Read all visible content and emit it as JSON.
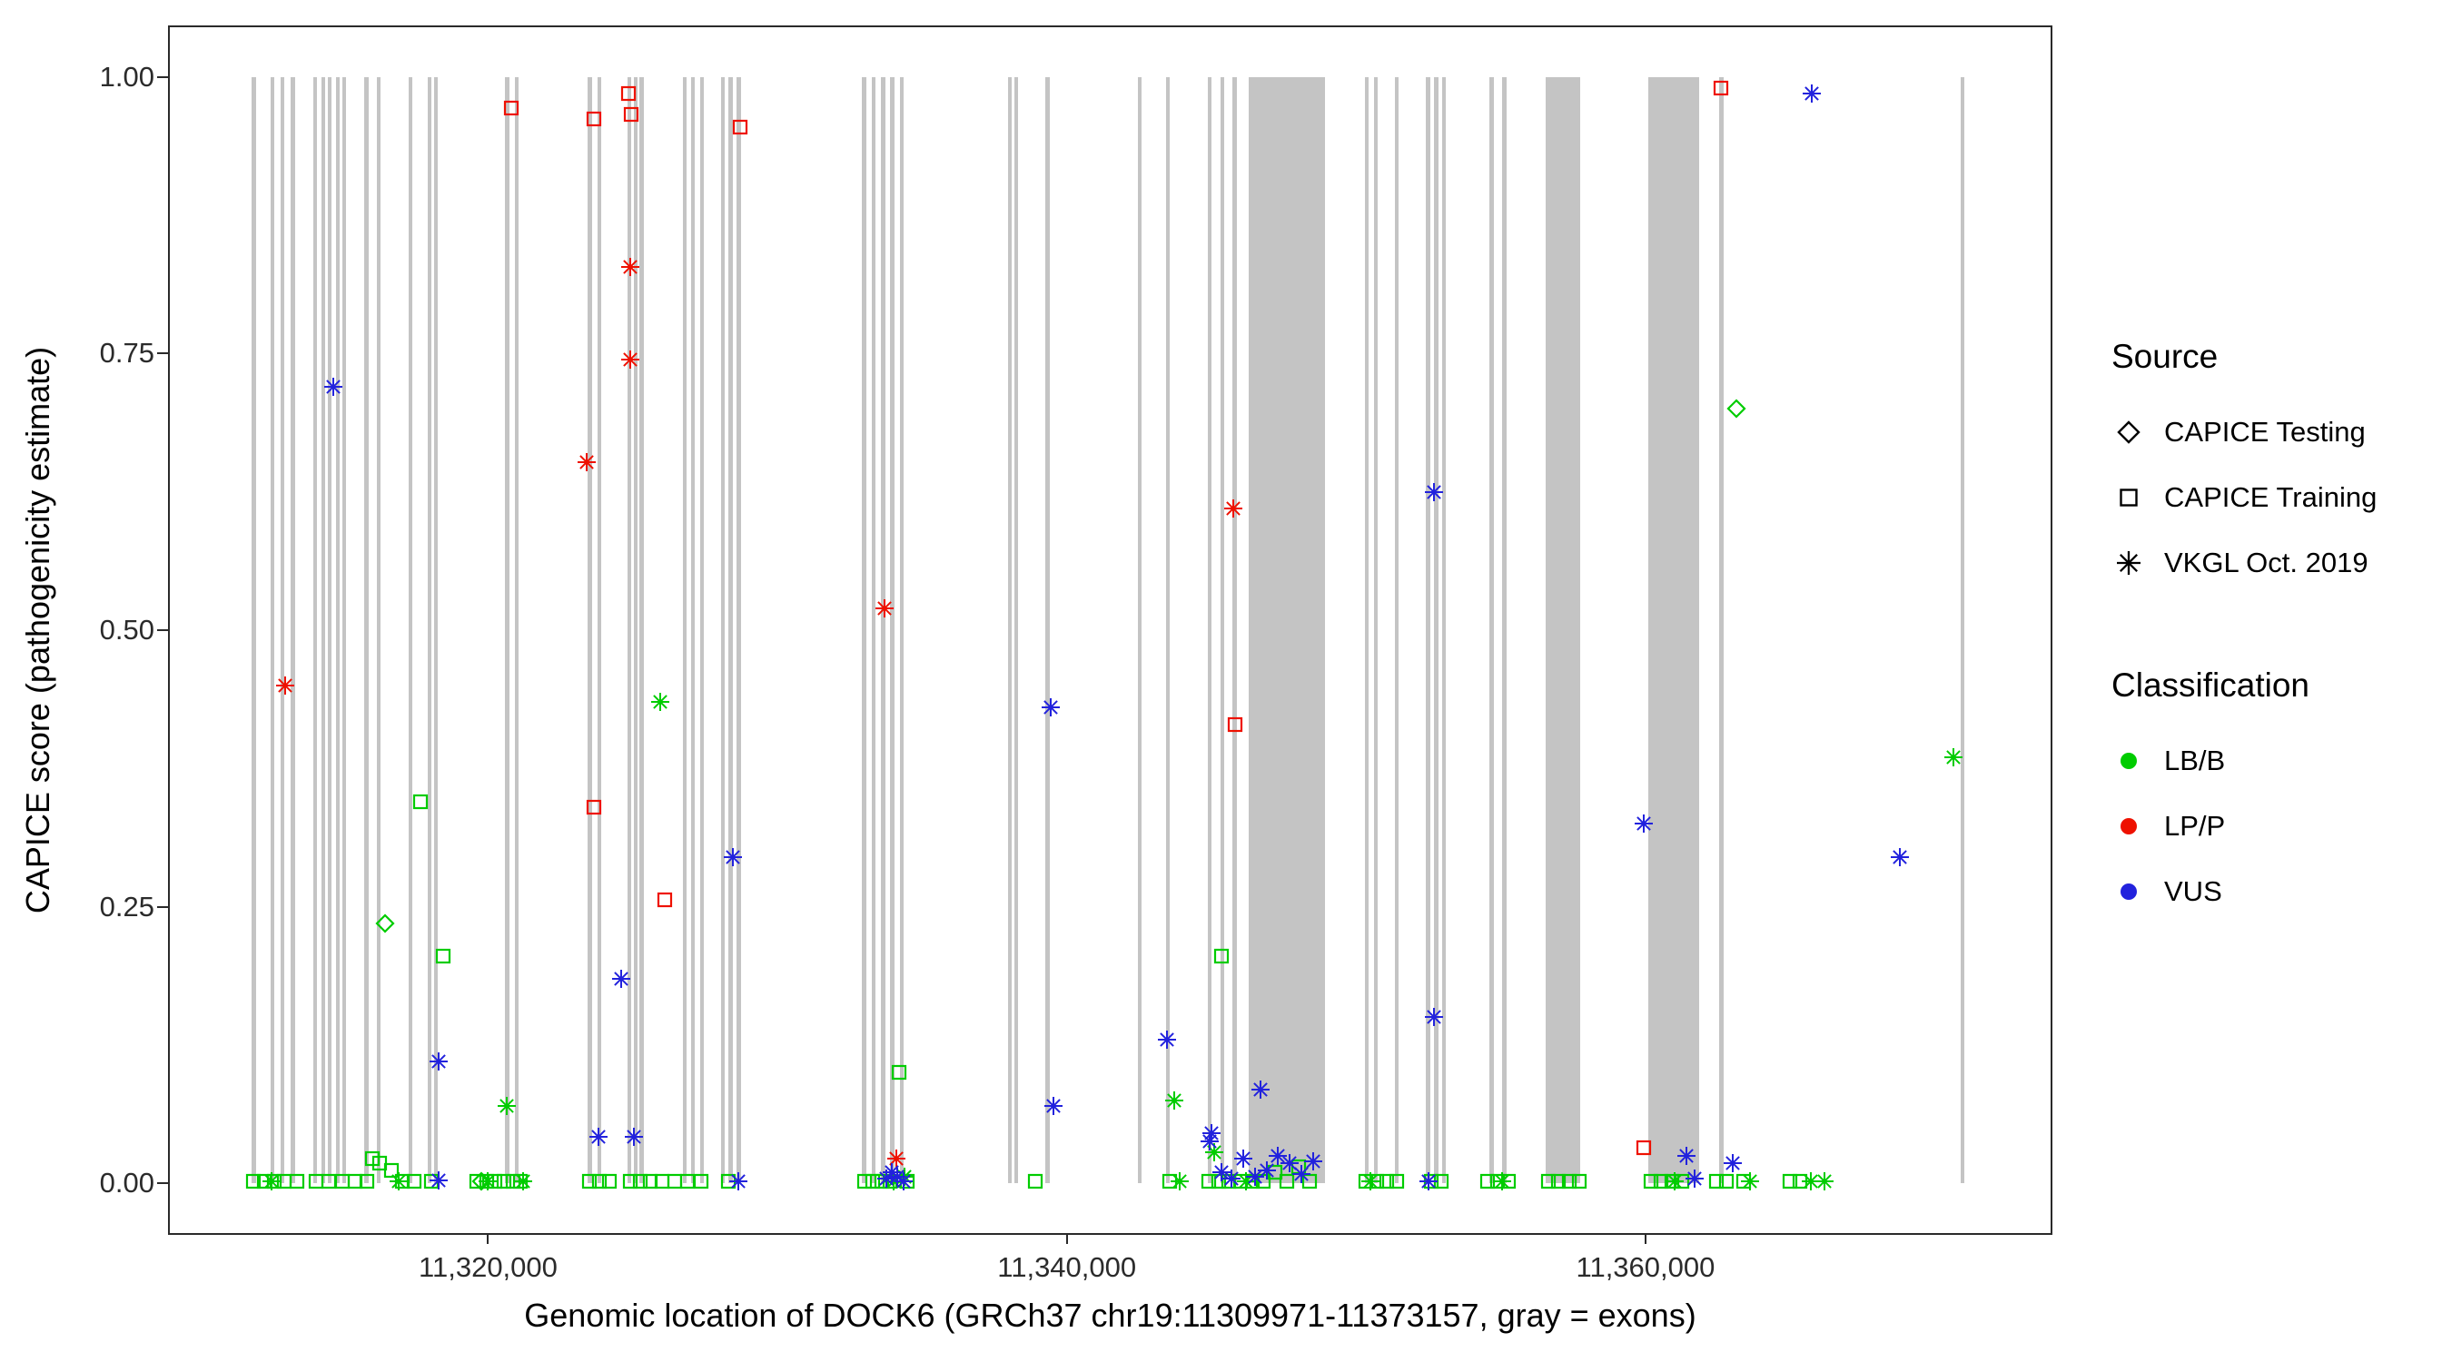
{
  "legend": {
    "source": {
      "title": "Source",
      "items": [
        {
          "label": "CAPICE Testing",
          "shape": "diamond"
        },
        {
          "label": "CAPICE Training",
          "shape": "square"
        },
        {
          "label": "VKGL Oct. 2019",
          "shape": "asterisk"
        }
      ]
    },
    "classification": {
      "title": "Classification",
      "items": [
        {
          "label": "LB/B",
          "color_key": "LB/B"
        },
        {
          "label": "LP/P",
          "color_key": "LP/P"
        },
        {
          "label": "VUS",
          "color_key": "VUS"
        }
      ]
    }
  },
  "chart_data": {
    "type": "scatter",
    "title": "",
    "xlabel": "Genomic location of DOCK6 (GRCh37 chr19:11309971-11373157, gray = exons)",
    "ylabel": "CAPICE score (pathogenicity estimate)",
    "x_domain": [
      11309000,
      11374000
    ],
    "y_domain": [
      -0.045,
      1.045
    ],
    "x_ticks": [
      {
        "value": 11320000,
        "label": "11,320,000"
      },
      {
        "value": 11340000,
        "label": "11,340,000"
      },
      {
        "value": 11360000,
        "label": "11,360,000"
      }
    ],
    "y_ticks": [
      {
        "value": 1.0,
        "label": "1.00"
      },
      {
        "value": 0.75,
        "label": "0.75"
      },
      {
        "value": 0.5,
        "label": "0.50"
      },
      {
        "value": 0.25,
        "label": "0.25"
      },
      {
        "value": 0.0,
        "label": "0.00"
      }
    ],
    "colors": {
      "LB/B": "#00cc00",
      "LP/P": "#ee1100",
      "VUS": "#2222dd",
      "exon": "#c4c4c4",
      "axis": "#2a2a2a"
    },
    "source_codes": {
      "d": "CAPICE Testing",
      "s": "CAPICE Training",
      "a": "VKGL Oct. 2019"
    },
    "class_codes": {
      "g": "LB/B",
      "r": "LP/P",
      "b": "VUS"
    },
    "exons": [
      [
        11311840,
        11311990
      ],
      [
        11312490,
        11312620
      ],
      [
        11312820,
        11312950
      ],
      [
        11313190,
        11313330
      ],
      [
        11313960,
        11314100
      ],
      [
        11314240,
        11314370
      ],
      [
        11314460,
        11314590
      ],
      [
        11314740,
        11314870
      ],
      [
        11314950,
        11315080
      ],
      [
        11315710,
        11315860
      ],
      [
        11316150,
        11316290
      ],
      [
        11317240,
        11317380
      ],
      [
        11317900,
        11318030
      ],
      [
        11318120,
        11318260
      ],
      [
        11320590,
        11320730
      ],
      [
        11320920,
        11321060
      ],
      [
        11323440,
        11323580
      ],
      [
        11323770,
        11323910
      ],
      [
        11324810,
        11324950
      ],
      [
        11325030,
        11325170
      ],
      [
        11325240,
        11325380
      ],
      [
        11326720,
        11326860
      ],
      [
        11327000,
        11327140
      ],
      [
        11327330,
        11327470
      ],
      [
        11328040,
        11328180
      ],
      [
        11328310,
        11328450
      ],
      [
        11328590,
        11328730
      ],
      [
        11332920,
        11333060
      ],
      [
        11333250,
        11333390
      ],
      [
        11333580,
        11333720
      ],
      [
        11333900,
        11334040
      ],
      [
        11334230,
        11334370
      ],
      [
        11337960,
        11338100
      ],
      [
        11338180,
        11338320
      ],
      [
        11339270,
        11339410
      ],
      [
        11342450,
        11342590
      ],
      [
        11343430,
        11343570
      ],
      [
        11344860,
        11345000
      ],
      [
        11345300,
        11345440
      ],
      [
        11345730,
        11345870
      ],
      [
        11346300,
        11348930
      ],
      [
        11350290,
        11350430
      ],
      [
        11350610,
        11350750
      ],
      [
        11351330,
        11351470
      ],
      [
        11352420,
        11352560
      ],
      [
        11352700,
        11352840
      ],
      [
        11352970,
        11353110
      ],
      [
        11354610,
        11354750
      ],
      [
        11355050,
        11355190
      ],
      [
        11356550,
        11357750
      ],
      [
        11360100,
        11361850
      ],
      [
        11362550,
        11362690
      ],
      [
        11370880,
        11371020
      ]
    ],
    "points": [
      [
        11313000,
        0.45,
        "a",
        "r"
      ],
      [
        11314650,
        0.72,
        "a",
        "b"
      ],
      [
        11316450,
        0.235,
        "d",
        "g"
      ],
      [
        11317650,
        0.345,
        "s",
        "g"
      ],
      [
        11318450,
        0.205,
        "s",
        "g"
      ],
      [
        11318300,
        0.11,
        "a",
        "b"
      ],
      [
        11320650,
        0.07,
        "a",
        "g"
      ],
      [
        11320800,
        0.972,
        "s",
        "r"
      ],
      [
        11323650,
        0.962,
        "s",
        "r"
      ],
      [
        11323400,
        0.652,
        "a",
        "r"
      ],
      [
        11323650,
        0.34,
        "s",
        "r"
      ],
      [
        11324850,
        0.985,
        "s",
        "r"
      ],
      [
        11324950,
        0.966,
        "s",
        "r"
      ],
      [
        11324900,
        0.828,
        "a",
        "r"
      ],
      [
        11324900,
        0.745,
        "a",
        "r"
      ],
      [
        11325950,
        0.435,
        "a",
        "g"
      ],
      [
        11326100,
        0.256,
        "s",
        "r"
      ],
      [
        11324600,
        0.185,
        "a",
        "b"
      ],
      [
        11323800,
        0.042,
        "a",
        "b"
      ],
      [
        11325050,
        0.042,
        "a",
        "b"
      ],
      [
        11328700,
        0.955,
        "s",
        "r"
      ],
      [
        11328450,
        0.295,
        "a",
        "b"
      ],
      [
        11333700,
        0.52,
        "a",
        "r"
      ],
      [
        11334200,
        0.1,
        "s",
        "g"
      ],
      [
        11334100,
        0.022,
        "a",
        "r"
      ],
      [
        11339450,
        0.43,
        "a",
        "b"
      ],
      [
        11339550,
        0.07,
        "a",
        "b"
      ],
      [
        11343450,
        0.13,
        "a",
        "b"
      ],
      [
        11343700,
        0.075,
        "a",
        "g"
      ],
      [
        11345000,
        0.045,
        "a",
        "b"
      ],
      [
        11345750,
        0.61,
        "a",
        "r"
      ],
      [
        11345800,
        0.415,
        "s",
        "r"
      ],
      [
        11345350,
        0.205,
        "s",
        "g"
      ],
      [
        11346700,
        0.085,
        "a",
        "b"
      ],
      [
        11352700,
        0.625,
        "a",
        "b"
      ],
      [
        11352700,
        0.15,
        "a",
        "b"
      ],
      [
        11359950,
        0.325,
        "a",
        "b"
      ],
      [
        11359950,
        0.032,
        "s",
        "r"
      ],
      [
        11362600,
        0.99,
        "s",
        "r"
      ],
      [
        11363150,
        0.7,
        "d",
        "g"
      ],
      [
        11365750,
        0.985,
        "a",
        "b"
      ],
      [
        11368800,
        0.295,
        "a",
        "b"
      ],
      [
        11370650,
        0.385,
        "a",
        "g"
      ],
      [
        11311900,
        0.002,
        "s",
        "g"
      ],
      [
        11312250,
        0.002,
        "s",
        "g"
      ],
      [
        11312600,
        0.002,
        "s",
        "g"
      ],
      [
        11312950,
        0.002,
        "s",
        "g"
      ],
      [
        11313400,
        0.002,
        "s",
        "g"
      ],
      [
        11314050,
        0.002,
        "s",
        "g"
      ],
      [
        11314500,
        0.002,
        "s",
        "g"
      ],
      [
        11314950,
        0.002,
        "s",
        "g"
      ],
      [
        11315400,
        0.002,
        "s",
        "g"
      ],
      [
        11315800,
        0.002,
        "s",
        "g"
      ],
      [
        11316000,
        0.022,
        "s",
        "g"
      ],
      [
        11316250,
        0.018,
        "s",
        "g"
      ],
      [
        11316650,
        0.012,
        "s",
        "g"
      ],
      [
        11317050,
        0.002,
        "s",
        "g"
      ],
      [
        11317450,
        0.002,
        "s",
        "g"
      ],
      [
        11318050,
        0.002,
        "s",
        "g"
      ],
      [
        11319600,
        0.002,
        "s",
        "g"
      ],
      [
        11319950,
        0.002,
        "s",
        "g"
      ],
      [
        11320250,
        0.002,
        "s",
        "g"
      ],
      [
        11320550,
        0.002,
        "s",
        "g"
      ],
      [
        11320850,
        0.002,
        "s",
        "g"
      ],
      [
        11321100,
        0.002,
        "s",
        "g"
      ],
      [
        11323500,
        0.002,
        "s",
        "g"
      ],
      [
        11323850,
        0.002,
        "s",
        "g"
      ],
      [
        11324200,
        0.002,
        "s",
        "g"
      ],
      [
        11324900,
        0.002,
        "s",
        "g"
      ],
      [
        11325250,
        0.002,
        "s",
        "g"
      ],
      [
        11325600,
        0.002,
        "s",
        "g"
      ],
      [
        11326000,
        0.002,
        "s",
        "g"
      ],
      [
        11326450,
        0.002,
        "s",
        "g"
      ],
      [
        11326900,
        0.002,
        "s",
        "g"
      ],
      [
        11327350,
        0.002,
        "s",
        "g"
      ],
      [
        11328300,
        0.002,
        "s",
        "g"
      ],
      [
        11333000,
        0.002,
        "s",
        "g"
      ],
      [
        11333300,
        0.002,
        "s",
        "g"
      ],
      [
        11333600,
        0.002,
        "s",
        "g"
      ],
      [
        11333900,
        0.002,
        "s",
        "g"
      ],
      [
        11334500,
        0.002,
        "s",
        "g"
      ],
      [
        11338900,
        0.002,
        "s",
        "g"
      ],
      [
        11343550,
        0.002,
        "s",
        "g"
      ],
      [
        11344900,
        0.002,
        "s",
        "g"
      ],
      [
        11345250,
        0.002,
        "s",
        "g"
      ],
      [
        11345600,
        0.002,
        "s",
        "g"
      ],
      [
        11346000,
        0.002,
        "s",
        "g"
      ],
      [
        11346400,
        0.002,
        "s",
        "g"
      ],
      [
        11346800,
        0.002,
        "s",
        "g"
      ],
      [
        11347200,
        0.01,
        "s",
        "g"
      ],
      [
        11347600,
        0.002,
        "s",
        "g"
      ],
      [
        11348000,
        0.015,
        "s",
        "g"
      ],
      [
        11348400,
        0.002,
        "s",
        "g"
      ],
      [
        11350350,
        0.002,
        "s",
        "g"
      ],
      [
        11350700,
        0.002,
        "s",
        "g"
      ],
      [
        11351050,
        0.002,
        "s",
        "g"
      ],
      [
        11351400,
        0.002,
        "s",
        "g"
      ],
      [
        11352600,
        0.002,
        "s",
        "g"
      ],
      [
        11352950,
        0.002,
        "s",
        "g"
      ],
      [
        11354550,
        0.002,
        "s",
        "g"
      ],
      [
        11354900,
        0.002,
        "s",
        "g"
      ],
      [
        11355250,
        0.002,
        "s",
        "g"
      ],
      [
        11356650,
        0.002,
        "s",
        "g"
      ],
      [
        11357000,
        0.002,
        "s",
        "g"
      ],
      [
        11357350,
        0.002,
        "s",
        "g"
      ],
      [
        11357700,
        0.002,
        "s",
        "g"
      ],
      [
        11360200,
        0.002,
        "s",
        "g"
      ],
      [
        11360550,
        0.002,
        "s",
        "g"
      ],
      [
        11360900,
        0.002,
        "s",
        "g"
      ],
      [
        11361250,
        0.002,
        "s",
        "g"
      ],
      [
        11362450,
        0.002,
        "s",
        "g"
      ],
      [
        11362800,
        0.002,
        "s",
        "g"
      ],
      [
        11363400,
        0.002,
        "s",
        "g"
      ],
      [
        11365000,
        0.002,
        "s",
        "g"
      ],
      [
        11365350,
        0.002,
        "s",
        "g"
      ],
      [
        11312500,
        0.002,
        "a",
        "g"
      ],
      [
        11316900,
        0.002,
        "a",
        "g"
      ],
      [
        11320000,
        0.002,
        "a",
        "g"
      ],
      [
        11321200,
        0.002,
        "a",
        "g"
      ],
      [
        11334000,
        0.002,
        "a",
        "g"
      ],
      [
        11334400,
        0.006,
        "a",
        "g"
      ],
      [
        11343900,
        0.002,
        "a",
        "g"
      ],
      [
        11345100,
        0.028,
        "a",
        "g"
      ],
      [
        11346200,
        0.002,
        "a",
        "g"
      ],
      [
        11350500,
        0.002,
        "a",
        "g"
      ],
      [
        11355050,
        0.002,
        "a",
        "g"
      ],
      [
        11361000,
        0.002,
        "a",
        "g"
      ],
      [
        11363600,
        0.002,
        "a",
        "g"
      ],
      [
        11365700,
        0.002,
        "a",
        "g"
      ],
      [
        11366200,
        0.002,
        "a",
        "g"
      ],
      [
        11319750,
        0.002,
        "d",
        "g"
      ],
      [
        11318300,
        0.003,
        "a",
        "b"
      ],
      [
        11328650,
        0.002,
        "a",
        "b"
      ],
      [
        11333750,
        0.004,
        "a",
        "b"
      ],
      [
        11333950,
        0.01,
        "a",
        "b"
      ],
      [
        11334150,
        0.006,
        "a",
        "b"
      ],
      [
        11334350,
        0.002,
        "a",
        "b"
      ],
      [
        11344950,
        0.038,
        "a",
        "b"
      ],
      [
        11345350,
        0.01,
        "a",
        "b"
      ],
      [
        11345700,
        0.004,
        "a",
        "b"
      ],
      [
        11346100,
        0.022,
        "a",
        "b"
      ],
      [
        11346500,
        0.006,
        "a",
        "b"
      ],
      [
        11346900,
        0.012,
        "a",
        "b"
      ],
      [
        11347300,
        0.025,
        "a",
        "b"
      ],
      [
        11347700,
        0.018,
        "a",
        "b"
      ],
      [
        11348100,
        0.008,
        "a",
        "b"
      ],
      [
        11348500,
        0.02,
        "a",
        "b"
      ],
      [
        11352500,
        0.002,
        "a",
        "b"
      ],
      [
        11361400,
        0.025,
        "a",
        "b"
      ],
      [
        11361700,
        0.004,
        "a",
        "b"
      ],
      [
        11363000,
        0.018,
        "a",
        "b"
      ]
    ]
  }
}
